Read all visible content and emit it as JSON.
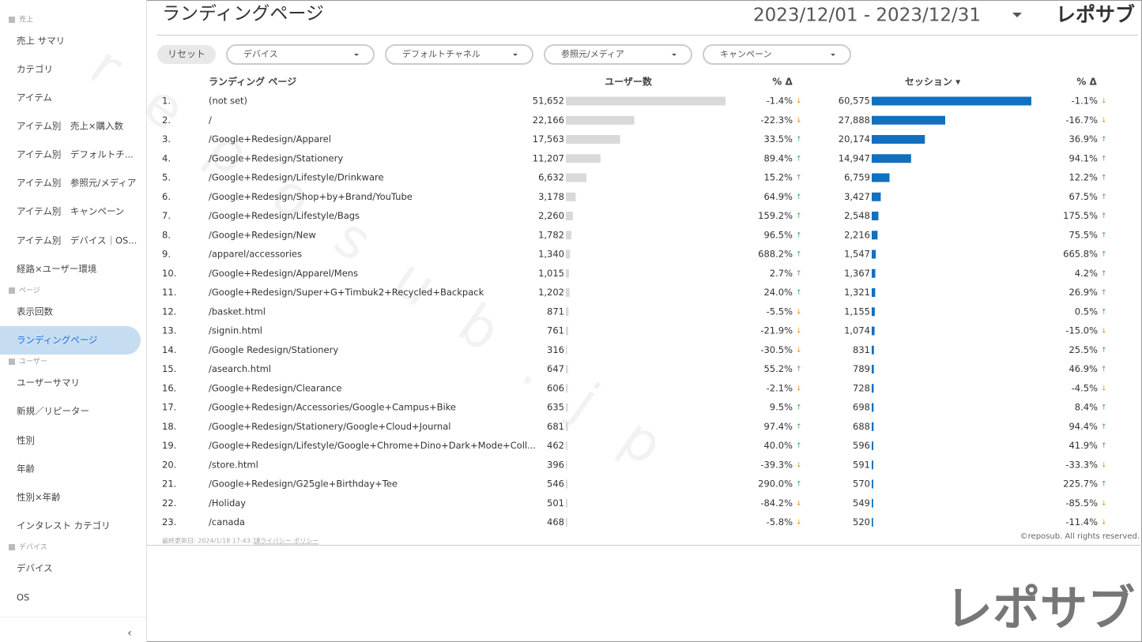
{
  "sidebar": {
    "items": [
      {
        "kind": "section",
        "label": "売上"
      },
      {
        "kind": "item",
        "label": "売上 サマリ"
      },
      {
        "kind": "item",
        "label": "カテゴリ"
      },
      {
        "kind": "item",
        "label": "アイテム"
      },
      {
        "kind": "item",
        "label": "アイテム別　売上×購入数"
      },
      {
        "kind": "item",
        "label": "アイテム別　デフォルトチ..."
      },
      {
        "kind": "item",
        "label": "アイテム別　参照元/メディア"
      },
      {
        "kind": "item",
        "label": "アイテム別　キャンペーン"
      },
      {
        "kind": "item",
        "label": "アイテム別　デバイス｜OS..."
      },
      {
        "kind": "item",
        "label": "経路×ユーザー環境"
      },
      {
        "kind": "section",
        "label": "ページ"
      },
      {
        "kind": "item",
        "label": "表示回数"
      },
      {
        "kind": "selected",
        "label": "ランディングページ"
      },
      {
        "kind": "section",
        "label": "ユーザー"
      },
      {
        "kind": "item",
        "label": "ユーザーサマリ"
      },
      {
        "kind": "item",
        "label": "新規／リピーター"
      },
      {
        "kind": "item",
        "label": "性別"
      },
      {
        "kind": "item",
        "label": "年齢"
      },
      {
        "kind": "item",
        "label": "性別×年齢"
      },
      {
        "kind": "item",
        "label": "インタレスト カテゴリ"
      },
      {
        "kind": "section",
        "label": "デバイス"
      },
      {
        "kind": "item",
        "label": "デバイス"
      },
      {
        "kind": "item",
        "label": "OS"
      }
    ]
  },
  "header": {
    "title": "ランディングページ",
    "date_range": "2023/12/01 - 2023/12/31",
    "logo": "レポサブ"
  },
  "filters": {
    "reset": "リセット",
    "dropdowns": [
      "デバイス",
      "デフォルトチャネル",
      "参照元/メディア",
      "キャンペーン"
    ]
  },
  "table": {
    "columns": [
      "ランディング ページ",
      "ユーザー数",
      "% Δ",
      "セッション ▾",
      "% Δ"
    ],
    "rows": [
      {
        "rank": "1.",
        "page": "(not set)",
        "users": {
          "value": 51652,
          "label": "51,652"
        },
        "users_delta": "-1.4%",
        "sessions": {
          "value": 60575,
          "label": "60,575"
        },
        "sessions_delta": "-1.1%"
      },
      {
        "rank": "2.",
        "page": "/",
        "users": {
          "value": 22166,
          "label": "22,166"
        },
        "users_delta": "-22.3%",
        "sessions": {
          "value": 27888,
          "label": "27,888"
        },
        "sessions_delta": "-16.7%"
      },
      {
        "rank": "3.",
        "page": "/Google+Redesign/Apparel",
        "users": {
          "value": 17563,
          "label": "17,563"
        },
        "users_delta": "33.5%",
        "sessions": {
          "value": 20174,
          "label": "20,174"
        },
        "sessions_delta": "36.9%"
      },
      {
        "rank": "4.",
        "page": "/Google+Redesign/Stationery",
        "users": {
          "value": 11207,
          "label": "11,207"
        },
        "users_delta": "89.4%",
        "sessions": {
          "value": 14947,
          "label": "14,947"
        },
        "sessions_delta": "94.1%"
      },
      {
        "rank": "5.",
        "page": "/Google+Redesign/Lifestyle/Drinkware",
        "users": {
          "value": 6632,
          "label": "6,632"
        },
        "users_delta": "15.2%",
        "sessions": {
          "value": 6759,
          "label": "6,759"
        },
        "sessions_delta": "12.2%"
      },
      {
        "rank": "6.",
        "page": "/Google+Redesign/Shop+by+Brand/YouTube",
        "users": {
          "value": 3178,
          "label": "3,178"
        },
        "users_delta": "64.9%",
        "sessions": {
          "value": 3427,
          "label": "3,427"
        },
        "sessions_delta": "67.5%"
      },
      {
        "rank": "7.",
        "page": "/Google+Redesign/Lifestyle/Bags",
        "users": {
          "value": 2260,
          "label": "2,260"
        },
        "users_delta": "159.2%",
        "sessions": {
          "value": 2548,
          "label": "2,548"
        },
        "sessions_delta": "175.5%"
      },
      {
        "rank": "8.",
        "page": "/Google+Redesign/New",
        "users": {
          "value": 1782,
          "label": "1,782"
        },
        "users_delta": "96.5%",
        "sessions": {
          "value": 2216,
          "label": "2,216"
        },
        "sessions_delta": "75.5%"
      },
      {
        "rank": "9.",
        "page": "/apparel/accessories",
        "users": {
          "value": 1340,
          "label": "1,340"
        },
        "users_delta": "688.2%",
        "sessions": {
          "value": 1547,
          "label": "1,547"
        },
        "sessions_delta": "665.8%"
      },
      {
        "rank": "10.",
        "page": "/Google+Redesign/Apparel/Mens",
        "users": {
          "value": 1015,
          "label": "1,015"
        },
        "users_delta": "2.7%",
        "sessions": {
          "value": 1367,
          "label": "1,367"
        },
        "sessions_delta": "4.2%"
      },
      {
        "rank": "11.",
        "page": "/Google+Redesign/Super+G+Timbuk2+Recycled+Backpack",
        "users": {
          "value": 1202,
          "label": "1,202"
        },
        "users_delta": "24.0%",
        "sessions": {
          "value": 1321,
          "label": "1,321"
        },
        "sessions_delta": "26.9%"
      },
      {
        "rank": "12.",
        "page": "/basket.html",
        "users": {
          "value": 871,
          "label": "871"
        },
        "users_delta": "-5.5%",
        "sessions": {
          "value": 1155,
          "label": "1,155"
        },
        "sessions_delta": "0.5%"
      },
      {
        "rank": "13.",
        "page": "/signin.html",
        "users": {
          "value": 761,
          "label": "761"
        },
        "users_delta": "-21.9%",
        "sessions": {
          "value": 1074,
          "label": "1,074"
        },
        "sessions_delta": "-15.0%"
      },
      {
        "rank": "14.",
        "page": "/Google Redesign/Stationery",
        "users": {
          "value": 316,
          "label": "316"
        },
        "users_delta": "-30.5%",
        "sessions": {
          "value": 831,
          "label": "831"
        },
        "sessions_delta": "25.5%"
      },
      {
        "rank": "15.",
        "page": "/asearch.html",
        "users": {
          "value": 647,
          "label": "647"
        },
        "users_delta": "55.2%",
        "sessions": {
          "value": 789,
          "label": "789"
        },
        "sessions_delta": "46.9%"
      },
      {
        "rank": "16.",
        "page": "/Google+Redesign/Clearance",
        "users": {
          "value": 606,
          "label": "606"
        },
        "users_delta": "-2.1%",
        "sessions": {
          "value": 728,
          "label": "728"
        },
        "sessions_delta": "-4.5%"
      },
      {
        "rank": "17.",
        "page": "/Google+Redesign/Accessories/Google+Campus+Bike",
        "users": {
          "value": 635,
          "label": "635"
        },
        "users_delta": "9.5%",
        "sessions": {
          "value": 698,
          "label": "698"
        },
        "sessions_delta": "8.4%"
      },
      {
        "rank": "18.",
        "page": "/Google+Redesign/Stationery/Google+Cloud+Journal",
        "users": {
          "value": 681,
          "label": "681"
        },
        "users_delta": "97.4%",
        "sessions": {
          "value": 688,
          "label": "688"
        },
        "sessions_delta": "94.4%"
      },
      {
        "rank": "19.",
        "page": "/Google+Redesign/Lifestyle/Google+Chrome+Dino+Dark+Mode+Coll...",
        "users": {
          "value": 462,
          "label": "462"
        },
        "users_delta": "40.0%",
        "sessions": {
          "value": 596,
          "label": "596"
        },
        "sessions_delta": "41.9%"
      },
      {
        "rank": "20.",
        "page": "/store.html",
        "users": {
          "value": 396,
          "label": "396"
        },
        "users_delta": "-39.3%",
        "sessions": {
          "value": 591,
          "label": "591"
        },
        "sessions_delta": "-33.3%"
      },
      {
        "rank": "21.",
        "page": "/Google+Redesign/G25gle+Birthday+Tee",
        "users": {
          "value": 546,
          "label": "546"
        },
        "users_delta": "290.0%",
        "sessions": {
          "value": 570,
          "label": "570"
        },
        "sessions_delta": "225.7%"
      },
      {
        "rank": "22.",
        "page": "/Holiday",
        "users": {
          "value": 501,
          "label": "501"
        },
        "users_delta": "-84.2%",
        "sessions": {
          "value": 549,
          "label": "549"
        },
        "sessions_delta": "-85.5%"
      },
      {
        "rank": "23.",
        "page": "/canada",
        "users": {
          "value": 468,
          "label": "468"
        },
        "users_delta": "-5.8%",
        "sessions": {
          "value": 520,
          "label": "520"
        },
        "sessions_delta": "-11.4%"
      }
    ]
  },
  "footer": {
    "updated": "最終更新日: 2024/1/18 17:43:16",
    "privacy": "プライバシー ポリシー",
    "copyright": "©reposub. All rights reserved.",
    "big_logo": "レポサブ"
  },
  "watermark": "reposub.jp"
}
